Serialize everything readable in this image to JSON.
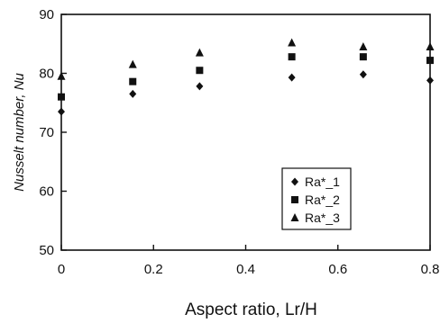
{
  "chart_data": {
    "type": "scatter",
    "title": "",
    "xlabel": "Aspect ratio, Lr/H",
    "ylabel": "Nusselt number, Nu",
    "xlim": [
      0,
      0.8
    ],
    "ylim": [
      50,
      90
    ],
    "xticks": [
      0,
      0.2,
      0.4,
      0.6,
      0.8
    ],
    "xtick_labels": [
      "0",
      "0.2",
      "0.4",
      "0.6",
      "0.8"
    ],
    "yticks": [
      50,
      60,
      70,
      80,
      90
    ],
    "ytick_labels": [
      "50",
      "60",
      "70",
      "80",
      "90"
    ],
    "grid": false,
    "legend_position": "lower-right",
    "series": [
      {
        "name": "Ra*_1",
        "marker": "diamond",
        "x": [
          0,
          0.155,
          0.3,
          0.5,
          0.655,
          0.8
        ],
        "y": [
          73.5,
          76.5,
          77.8,
          79.3,
          79.8,
          78.8
        ]
      },
      {
        "name": "Ra*_2",
        "marker": "square",
        "x": [
          0,
          0.155,
          0.3,
          0.5,
          0.655,
          0.8
        ],
        "y": [
          76.0,
          78.6,
          80.5,
          82.8,
          82.8,
          82.2
        ]
      },
      {
        "name": "Ra*_3",
        "marker": "triangle",
        "x": [
          0,
          0.155,
          0.3,
          0.5,
          0.655,
          0.8
        ],
        "y": [
          79.5,
          81.5,
          83.5,
          85.2,
          84.5,
          84.5
        ]
      }
    ]
  }
}
